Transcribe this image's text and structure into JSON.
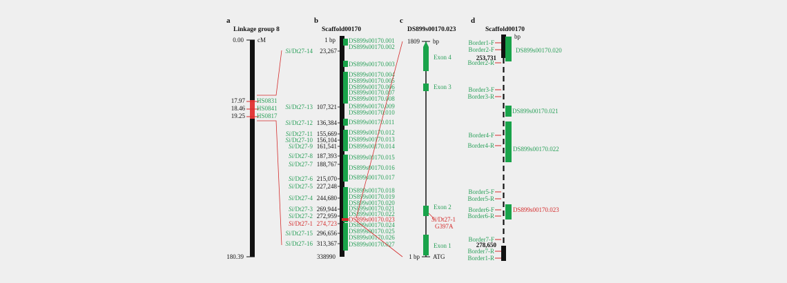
{
  "colors": {
    "gene": "#19a34a",
    "link": "#d42a2a",
    "label_green": "#2aa05a",
    "label_red": "#d42a2a",
    "background": "#efefef"
  },
  "panel_a": {
    "letter": "a",
    "title": "Linkage group 8",
    "top_value": "0.00",
    "unit": "cM",
    "bottom_value": "180.39",
    "markers": [
      {
        "value": "17.97",
        "name": "HS0831"
      },
      {
        "value": "18.46",
        "name": "HS0841"
      },
      {
        "value": "19.25",
        "name": "HS0817"
      }
    ]
  },
  "panel_b": {
    "letter": "b",
    "title": "Scaffold00170",
    "top_label": "1 bp",
    "bottom_label": "338990",
    "markers": [
      {
        "prefix": "Si",
        "suffix": "/Dt27-14",
        "pos": "23,267",
        "highlight": false
      },
      {
        "prefix": "Si",
        "suffix": "/Dt27-13",
        "pos": "107,321",
        "highlight": false
      },
      {
        "prefix": "Si",
        "suffix": "/Dt27-12",
        "pos": "136,384",
        "highlight": false
      },
      {
        "prefix": "Si",
        "suffix": "/Dt27-11",
        "pos": "155,669",
        "highlight": false
      },
      {
        "prefix": "Si",
        "suffix": "/Dt27-10",
        "pos": "156,104",
        "highlight": false
      },
      {
        "prefix": "Si",
        "suffix": "/Dt27-9",
        "pos": "161,541",
        "highlight": false
      },
      {
        "prefix": "Si",
        "suffix": "/Dt27-8",
        "pos": "187,393",
        "highlight": false
      },
      {
        "prefix": "Si",
        "suffix": "/Dt27-7",
        "pos": "188,767",
        "highlight": false
      },
      {
        "prefix": "Si",
        "suffix": "/Dt27-6",
        "pos": "215,070",
        "highlight": false
      },
      {
        "prefix": "Si",
        "suffix": "/Dt27-5",
        "pos": "227,248",
        "highlight": false
      },
      {
        "prefix": "Si",
        "suffix": "/Dt27-4",
        "pos": "244,680",
        "highlight": false
      },
      {
        "prefix": "Si",
        "suffix": "/Dt27-3",
        "pos": "269,944",
        "highlight": false
      },
      {
        "prefix": "Si",
        "suffix": "/Dt27-2",
        "pos": "272,959",
        "highlight": false
      },
      {
        "prefix": "Si",
        "suffix": "/Dt27-1",
        "pos": "274,723",
        "highlight": true
      },
      {
        "prefix": "Si",
        "suffix": "/Dt27-15",
        "pos": "296,656",
        "highlight": false
      },
      {
        "prefix": "Si",
        "suffix": "/Dt27-16",
        "pos": "313,367",
        "highlight": false
      }
    ],
    "genes": [
      {
        "name": "DS899s00170.001",
        "highlight": false
      },
      {
        "name": "DS899s00170.002",
        "highlight": false
      },
      {
        "name": "DS899s00170.003",
        "highlight": false
      },
      {
        "name": "DS899s00170.004",
        "highlight": false
      },
      {
        "name": "DS899s00170.005",
        "highlight": false
      },
      {
        "name": "DS899s00170.006",
        "highlight": false
      },
      {
        "name": "DS899s00170.007",
        "highlight": false
      },
      {
        "name": "DS899s00170.008",
        "highlight": false
      },
      {
        "name": "DS899s00170.009",
        "highlight": false
      },
      {
        "name": "DS899s00170.010",
        "highlight": false
      },
      {
        "name": "DS899s00170.011",
        "highlight": false
      },
      {
        "name": "DS899s00170.012",
        "highlight": false
      },
      {
        "name": "DS899s00170.013",
        "highlight": false
      },
      {
        "name": "DS899s00170.014",
        "highlight": false
      },
      {
        "name": "DS899s00170.015",
        "highlight": false
      },
      {
        "name": "DS899s00170.016",
        "highlight": false
      },
      {
        "name": "DS899s00170.017",
        "highlight": false
      },
      {
        "name": "DS899s00170.018",
        "highlight": false
      },
      {
        "name": "DS899s00170.019",
        "highlight": false
      },
      {
        "name": "DS899s00170.020",
        "highlight": false
      },
      {
        "name": "DS899s00170.021",
        "highlight": false
      },
      {
        "name": "DS899s00170.022",
        "highlight": false
      },
      {
        "name": "DS899s00170.023",
        "highlight": true
      },
      {
        "name": "DS899s00170.024",
        "highlight": false
      },
      {
        "name": "DS899s00170.025",
        "highlight": false
      },
      {
        "name": "DS899s00170.026",
        "highlight": false
      },
      {
        "name": "DS899s00170.027",
        "highlight": false
      }
    ]
  },
  "panel_c": {
    "letter": "c",
    "title": "DS899s00170.023",
    "top_value": "1809",
    "top_unit": "bp",
    "bottom_label": "1 bp",
    "bottom_tag": "ATG",
    "exons": [
      "Exon 4",
      "Exon 3",
      "Exon 2",
      "Exon 1"
    ],
    "snp_prefix": "Si",
    "snp_suffix": "/Dt27-1",
    "snp_allele": "G397A"
  },
  "panel_d": {
    "letter": "d",
    "title": "Scaffold00170",
    "top_unit": "bp",
    "pos_top": "253,731",
    "pos_bottom": "278,650",
    "borders": [
      "Border1-F",
      "Border2-F",
      "Border2-R",
      "Border3-F",
      "Border3-R",
      "Border4-F",
      "Border4-R",
      "Border5-F",
      "Border5-R",
      "Border6-F",
      "Border6-R",
      "Border7-F",
      "Border7-R",
      "Border1-R"
    ],
    "genes": [
      {
        "name": "DS899s00170.020",
        "highlight": false
      },
      {
        "name": "DS899s00170.021",
        "highlight": false
      },
      {
        "name": "DS899s00170.022",
        "highlight": false
      },
      {
        "name": "DS899s00170.023",
        "highlight": true
      }
    ]
  }
}
